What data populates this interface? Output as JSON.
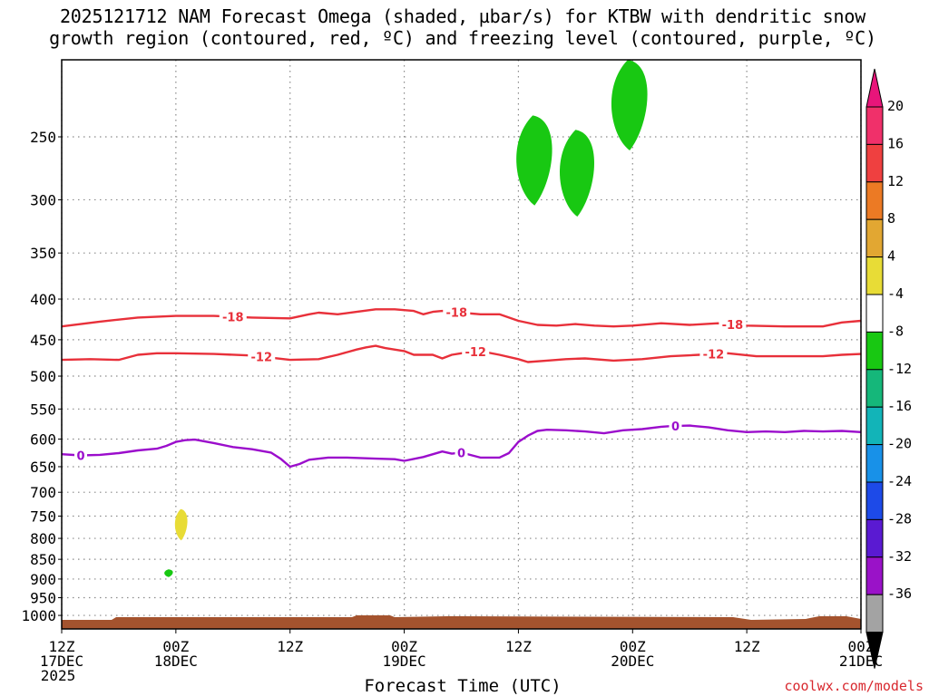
{
  "title": {
    "line1": "2025121712 NAM Forecast Omega (shaded, µbar/s) for KTBW with dendritic snow",
    "line2": "growth region (contoured, red, ºC) and freezing level (contoured, purple, ºC)"
  },
  "credit": "coolwx.com/models",
  "chart_data": {
    "type": "heatmap",
    "title": "2025121712 NAM Forecast Omega (shaded, µbar/s) for KTBW with dendritic snow growth region (contoured, red, ºC) and freezing level (contoured, purple, ºC)",
    "xlabel": "Forecast Time (UTC)",
    "ylabel": "",
    "x_range_hours": [
      0,
      84
    ],
    "y_range_hPa": [
      200,
      1040
    ],
    "y_scale": "log-pressure",
    "grid": true,
    "x_ticks": [
      {
        "hour": 0,
        "line1": "12Z",
        "line2": "17DEC",
        "line3": "2025"
      },
      {
        "hour": 12,
        "line1": "00Z",
        "line2": "18DEC",
        "line3": ""
      },
      {
        "hour": 24,
        "line1": "12Z",
        "line2": "",
        "line3": ""
      },
      {
        "hour": 36,
        "line1": "00Z",
        "line2": "19DEC",
        "line3": ""
      },
      {
        "hour": 48,
        "line1": "12Z",
        "line2": "",
        "line3": ""
      },
      {
        "hour": 60,
        "line1": "00Z",
        "line2": "20DEC",
        "line3": ""
      },
      {
        "hour": 72,
        "line1": "12Z",
        "line2": "",
        "line3": ""
      },
      {
        "hour": 84,
        "line1": "00Z",
        "line2": "21DEC",
        "line3": ""
      }
    ],
    "y_ticks": [
      250,
      300,
      350,
      400,
      450,
      500,
      550,
      600,
      650,
      700,
      750,
      800,
      850,
      900,
      950,
      1000
    ],
    "colorbar": {
      "ticks": [
        "20",
        "16",
        "12",
        "8",
        "4",
        "-4",
        "-8",
        "-12",
        "-16",
        "-20",
        "-24",
        "-28",
        "-32",
        "-36"
      ],
      "colors": [
        "#f0306a",
        "#ef4040",
        "#ec7a24",
        "#e2a732",
        "#e8dc36",
        "#ffffff",
        "#18c812",
        "#15b77a",
        "#12b4b8",
        "#1891e8",
        "#1d4ae8",
        "#5a1ad2",
        "#9a12c8",
        "#a3a3a3"
      ],
      "over_color": "#e8157a",
      "under_color": "#000000"
    },
    "surface_color": "#a4532e",
    "omega_areas": [
      {
        "color": "#18c812",
        "center_hour": 49.5,
        "pressure_top": 235,
        "pressure_bottom": 305
      },
      {
        "color": "#18c812",
        "center_hour": 54.0,
        "pressure_top": 245,
        "pressure_bottom": 315
      },
      {
        "color": "#18c812",
        "center_hour": 59.5,
        "pressure_top": 200,
        "pressure_bottom": 260
      },
      {
        "color": "#e8dc36",
        "center_hour": 12.5,
        "pressure_top": 735,
        "pressure_bottom": 805
      },
      {
        "color": "#18c812",
        "center_hour": 11.2,
        "pressure_top": 875,
        "pressure_bottom": 895
      }
    ],
    "series": [
      {
        "label": "-18",
        "color": "#e8303a",
        "label_hours": [
          18.0,
          41.5,
          70.5
        ],
        "points": [
          [
            0,
            433
          ],
          [
            4,
            427
          ],
          [
            8,
            422
          ],
          [
            12,
            420
          ],
          [
            16,
            420
          ],
          [
            20,
            422
          ],
          [
            24,
            423
          ],
          [
            26,
            418
          ],
          [
            27,
            416
          ],
          [
            29,
            418
          ],
          [
            31,
            415
          ],
          [
            33,
            412
          ],
          [
            35,
            412
          ],
          [
            37,
            414
          ],
          [
            38,
            418
          ],
          [
            39,
            415
          ],
          [
            40,
            414
          ],
          [
            42,
            416
          ],
          [
            44,
            418
          ],
          [
            46,
            418
          ],
          [
            48,
            426
          ],
          [
            50,
            431
          ],
          [
            52,
            432
          ],
          [
            54,
            430
          ],
          [
            56,
            432
          ],
          [
            58,
            433
          ],
          [
            60,
            432
          ],
          [
            63,
            429
          ],
          [
            66,
            431
          ],
          [
            69,
            429
          ],
          [
            72,
            432
          ],
          [
            76,
            433
          ],
          [
            80,
            433
          ],
          [
            82,
            428
          ],
          [
            84,
            426
          ]
        ]
      },
      {
        "label": "-12",
        "color": "#e8303a",
        "label_hours": [
          21.0,
          43.5,
          68.5
        ],
        "points": [
          [
            0,
            477
          ],
          [
            3,
            476
          ],
          [
            6,
            477
          ],
          [
            8,
            470
          ],
          [
            10,
            468
          ],
          [
            12,
            468
          ],
          [
            16,
            469
          ],
          [
            20,
            471
          ],
          [
            24,
            477
          ],
          [
            27,
            476
          ],
          [
            29,
            470
          ],
          [
            31,
            463
          ],
          [
            32,
            460
          ],
          [
            33,
            458
          ],
          [
            34,
            461
          ],
          [
            36,
            465
          ],
          [
            37,
            470
          ],
          [
            39,
            470
          ],
          [
            40,
            475
          ],
          [
            41,
            470
          ],
          [
            42,
            468
          ],
          [
            44,
            465
          ],
          [
            46,
            470
          ],
          [
            48,
            476
          ],
          [
            49,
            480
          ],
          [
            51,
            478
          ],
          [
            53,
            476
          ],
          [
            55,
            475
          ],
          [
            58,
            478
          ],
          [
            61,
            476
          ],
          [
            64,
            472
          ],
          [
            67,
            470
          ],
          [
            70,
            468
          ],
          [
            73,
            472
          ],
          [
            76,
            472
          ],
          [
            80,
            472
          ],
          [
            82,
            470
          ],
          [
            84,
            469
          ]
        ]
      },
      {
        "label": "0",
        "color": "#9b0dcc",
        "label_hours": [
          2.0,
          42.0,
          64.5
        ],
        "points": [
          [
            0,
            627
          ],
          [
            2,
            629
          ],
          [
            4,
            628
          ],
          [
            6,
            625
          ],
          [
            8,
            620
          ],
          [
            10,
            617
          ],
          [
            11,
            612
          ],
          [
            12,
            605
          ],
          [
            13,
            602
          ],
          [
            14,
            601
          ],
          [
            16,
            607
          ],
          [
            18,
            614
          ],
          [
            20,
            618
          ],
          [
            22,
            624
          ],
          [
            23,
            635
          ],
          [
            24,
            650
          ],
          [
            25,
            645
          ],
          [
            26,
            637
          ],
          [
            28,
            633
          ],
          [
            30,
            633
          ],
          [
            33,
            635
          ],
          [
            35,
            636
          ],
          [
            36,
            639
          ],
          [
            38,
            632
          ],
          [
            40,
            622
          ],
          [
            41,
            626
          ],
          [
            42,
            624
          ],
          [
            44,
            633
          ],
          [
            46,
            633
          ],
          [
            47,
            625
          ],
          [
            48,
            605
          ],
          [
            49,
            594
          ],
          [
            50,
            586
          ],
          [
            51,
            584
          ],
          [
            53,
            585
          ],
          [
            55,
            587
          ],
          [
            57,
            590
          ],
          [
            59,
            585
          ],
          [
            61,
            583
          ],
          [
            63,
            579
          ],
          [
            64,
            578
          ],
          [
            66,
            577
          ],
          [
            68,
            580
          ],
          [
            70,
            585
          ],
          [
            72,
            588
          ],
          [
            74,
            587
          ],
          [
            76,
            588
          ],
          [
            78,
            586
          ],
          [
            80,
            587
          ],
          [
            82,
            586
          ],
          [
            84,
            588
          ]
        ]
      }
    ]
  }
}
